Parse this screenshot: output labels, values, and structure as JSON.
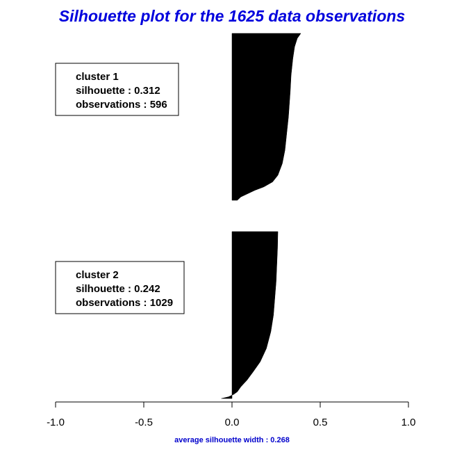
{
  "chart_data": {
    "type": "bar",
    "title": "Silhouette plot for the 1625 data observations",
    "xlabel": "average silhouette width : 0.268",
    "xlim": [
      -1.0,
      1.0
    ],
    "x_ticks": [
      "-1.0",
      "-0.5",
      "0.0",
      "0.5",
      "1.0"
    ],
    "average_silhouette_width": 0.268,
    "total_observations": 1625,
    "orientation": "horizontal",
    "bar_color": "#000000",
    "grid": false,
    "clusters": [
      {
        "legend": {
          "line1": "cluster 1",
          "line2": "silhouette : 0.312",
          "line3": "observations : 596"
        },
        "silhouette": 0.312,
        "observations": 596,
        "profile": [
          [
            0.0,
            0.39
          ],
          [
            0.03,
            0.37
          ],
          [
            0.08,
            0.355
          ],
          [
            0.15,
            0.345
          ],
          [
            0.25,
            0.335
          ],
          [
            0.35,
            0.33
          ],
          [
            0.5,
            0.32
          ],
          [
            0.6,
            0.31
          ],
          [
            0.7,
            0.3
          ],
          [
            0.78,
            0.285
          ],
          [
            0.85,
            0.26
          ],
          [
            0.89,
            0.23
          ],
          [
            0.92,
            0.18
          ],
          [
            0.94,
            0.13
          ],
          [
            0.96,
            0.09
          ],
          [
            0.98,
            0.05
          ],
          [
            1.0,
            0.03
          ]
        ]
      },
      {
        "legend": {
          "line1": "cluster 2",
          "line2": "silhouette : 0.242",
          "line3": "observations : 1029"
        },
        "silhouette": 0.242,
        "observations": 1029,
        "profile": [
          [
            0.0,
            0.26
          ],
          [
            0.1,
            0.258
          ],
          [
            0.3,
            0.25
          ],
          [
            0.5,
            0.235
          ],
          [
            0.6,
            0.22
          ],
          [
            0.7,
            0.195
          ],
          [
            0.78,
            0.16
          ],
          [
            0.84,
            0.12
          ],
          [
            0.89,
            0.085
          ],
          [
            0.93,
            0.05
          ],
          [
            0.96,
            0.03
          ],
          [
            0.975,
            0.01
          ],
          [
            0.99,
            -0.02
          ],
          [
            1.0,
            -0.06
          ]
        ]
      }
    ]
  }
}
